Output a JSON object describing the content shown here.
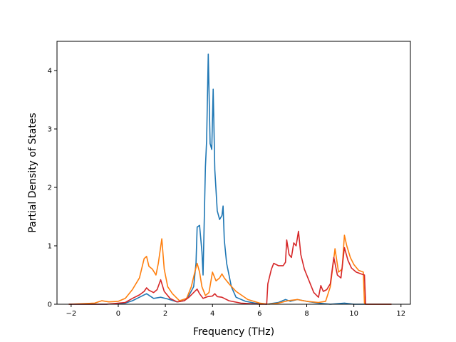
{
  "chart_data": {
    "type": "line",
    "title": "",
    "xlabel": "Frequency (THz)",
    "ylabel": "Partial Density of States",
    "xlim": [
      -2.6,
      12.4
    ],
    "ylim": [
      0,
      4.5
    ],
    "xticks": [
      -2,
      0,
      2,
      4,
      6,
      8,
      10,
      12
    ],
    "yticks": [
      0,
      1,
      2,
      3,
      4
    ],
    "grid": false,
    "legend": "none",
    "series": [
      {
        "color": "#1f77b4",
        "points": [
          [
            -2.1,
            0
          ],
          [
            -0.5,
            0
          ],
          [
            0.3,
            0.02
          ],
          [
            0.6,
            0.06
          ],
          [
            0.9,
            0.12
          ],
          [
            1.2,
            0.18
          ],
          [
            1.5,
            0.1
          ],
          [
            1.8,
            0.12
          ],
          [
            2.1,
            0.09
          ],
          [
            2.5,
            0.04
          ],
          [
            2.8,
            0.06
          ],
          [
            3.0,
            0.15
          ],
          [
            3.2,
            0.3
          ],
          [
            3.3,
            0.7
          ],
          [
            3.35,
            1.32
          ],
          [
            3.45,
            1.35
          ],
          [
            3.55,
            0.9
          ],
          [
            3.6,
            0.5
          ],
          [
            3.7,
            2.35
          ],
          [
            3.75,
            2.8
          ],
          [
            3.82,
            4.28
          ],
          [
            3.9,
            2.75
          ],
          [
            3.97,
            2.65
          ],
          [
            4.03,
            3.68
          ],
          [
            4.1,
            2.3
          ],
          [
            4.2,
            1.6
          ],
          [
            4.3,
            1.45
          ],
          [
            4.4,
            1.52
          ],
          [
            4.45,
            1.68
          ],
          [
            4.5,
            1.1
          ],
          [
            4.6,
            0.7
          ],
          [
            4.8,
            0.3
          ],
          [
            5.0,
            0.12
          ],
          [
            5.4,
            0.05
          ],
          [
            5.8,
            0.02
          ],
          [
            6.3,
            0
          ],
          [
            6.8,
            0.03
          ],
          [
            7.1,
            0.08
          ],
          [
            7.3,
            0.05
          ],
          [
            7.6,
            0.08
          ],
          [
            8.0,
            0.05
          ],
          [
            8.5,
            0.02
          ],
          [
            9.0,
            0
          ],
          [
            9.6,
            0.02
          ],
          [
            10.0,
            0
          ],
          [
            10.5,
            0
          ],
          [
            11.6,
            0
          ]
        ]
      },
      {
        "color": "#ff7f0e",
        "points": [
          [
            -2.1,
            0
          ],
          [
            -1.0,
            0.02
          ],
          [
            -0.7,
            0.06
          ],
          [
            -0.4,
            0.04
          ],
          [
            0.0,
            0.05
          ],
          [
            0.3,
            0.1
          ],
          [
            0.6,
            0.25
          ],
          [
            0.9,
            0.45
          ],
          [
            1.1,
            0.78
          ],
          [
            1.2,
            0.82
          ],
          [
            1.3,
            0.65
          ],
          [
            1.45,
            0.6
          ],
          [
            1.6,
            0.5
          ],
          [
            1.7,
            0.7
          ],
          [
            1.85,
            1.12
          ],
          [
            1.95,
            0.6
          ],
          [
            2.1,
            0.3
          ],
          [
            2.3,
            0.18
          ],
          [
            2.6,
            0.06
          ],
          [
            2.9,
            0.1
          ],
          [
            3.1,
            0.3
          ],
          [
            3.25,
            0.55
          ],
          [
            3.35,
            0.7
          ],
          [
            3.45,
            0.55
          ],
          [
            3.55,
            0.3
          ],
          [
            3.7,
            0.15
          ],
          [
            3.85,
            0.2
          ],
          [
            4.0,
            0.55
          ],
          [
            4.15,
            0.4
          ],
          [
            4.3,
            0.45
          ],
          [
            4.4,
            0.52
          ],
          [
            4.5,
            0.45
          ],
          [
            4.7,
            0.35
          ],
          [
            5.0,
            0.22
          ],
          [
            5.5,
            0.08
          ],
          [
            6.0,
            0.02
          ],
          [
            6.4,
            0
          ],
          [
            6.8,
            0.02
          ],
          [
            7.2,
            0.06
          ],
          [
            7.6,
            0.08
          ],
          [
            8.0,
            0.05
          ],
          [
            8.5,
            0.03
          ],
          [
            8.8,
            0.05
          ],
          [
            9.0,
            0.3
          ],
          [
            9.2,
            0.95
          ],
          [
            9.35,
            0.55
          ],
          [
            9.5,
            0.6
          ],
          [
            9.6,
            1.18
          ],
          [
            9.7,
            1.0
          ],
          [
            9.85,
            0.8
          ],
          [
            10.0,
            0.68
          ],
          [
            10.2,
            0.58
          ],
          [
            10.4,
            0.55
          ],
          [
            10.45,
            0.02
          ],
          [
            10.5,
            0
          ],
          [
            11.6,
            0
          ]
        ]
      },
      {
        "color": "#d62728",
        "points": [
          [
            -2.1,
            0
          ],
          [
            -0.5,
            0
          ],
          [
            0.3,
            0.03
          ],
          [
            0.6,
            0.1
          ],
          [
            0.9,
            0.16
          ],
          [
            1.1,
            0.22
          ],
          [
            1.2,
            0.28
          ],
          [
            1.3,
            0.24
          ],
          [
            1.5,
            0.2
          ],
          [
            1.65,
            0.25
          ],
          [
            1.8,
            0.42
          ],
          [
            1.95,
            0.22
          ],
          [
            2.2,
            0.1
          ],
          [
            2.5,
            0.04
          ],
          [
            2.8,
            0.06
          ],
          [
            3.0,
            0.12
          ],
          [
            3.2,
            0.2
          ],
          [
            3.35,
            0.26
          ],
          [
            3.45,
            0.18
          ],
          [
            3.6,
            0.1
          ],
          [
            3.8,
            0.13
          ],
          [
            4.0,
            0.14
          ],
          [
            4.1,
            0.18
          ],
          [
            4.2,
            0.13
          ],
          [
            4.4,
            0.12
          ],
          [
            4.7,
            0.06
          ],
          [
            5.2,
            0.02
          ],
          [
            6.0,
            0
          ],
          [
            6.3,
            0
          ],
          [
            6.35,
            0.35
          ],
          [
            6.5,
            0.6
          ],
          [
            6.6,
            0.7
          ],
          [
            6.8,
            0.66
          ],
          [
            7.0,
            0.66
          ],
          [
            7.1,
            0.72
          ],
          [
            7.15,
            1.1
          ],
          [
            7.25,
            0.85
          ],
          [
            7.35,
            0.8
          ],
          [
            7.45,
            1.05
          ],
          [
            7.55,
            1.0
          ],
          [
            7.65,
            1.25
          ],
          [
            7.75,
            0.85
          ],
          [
            7.9,
            0.6
          ],
          [
            8.1,
            0.4
          ],
          [
            8.3,
            0.2
          ],
          [
            8.5,
            0.12
          ],
          [
            8.6,
            0.32
          ],
          [
            8.7,
            0.22
          ],
          [
            8.85,
            0.25
          ],
          [
            9.0,
            0.35
          ],
          [
            9.15,
            0.8
          ],
          [
            9.3,
            0.5
          ],
          [
            9.45,
            0.45
          ],
          [
            9.6,
            0.97
          ],
          [
            9.75,
            0.75
          ],
          [
            9.9,
            0.62
          ],
          [
            10.1,
            0.55
          ],
          [
            10.3,
            0.52
          ],
          [
            10.45,
            0.5
          ],
          [
            10.5,
            0
          ],
          [
            11.6,
            0
          ]
        ]
      }
    ]
  }
}
